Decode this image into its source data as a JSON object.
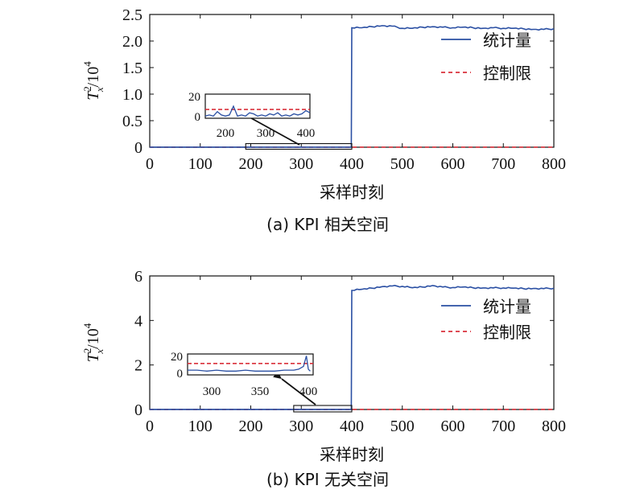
{
  "chart_data": [
    {
      "type": "line",
      "caption": "(a) KPI 相关空间",
      "xlabel": "采样时刻",
      "ylabel_main": "T",
      "ylabel_sup": "2",
      "ylabel_sub": "x",
      "ylabel_rest": "/10",
      "ylabel_exp": "4",
      "xlim": [
        0,
        800
      ],
      "ylim": [
        0,
        2.5
      ],
      "xticks": [
        "0",
        "100",
        "200",
        "300",
        "400",
        "500",
        "600",
        "700",
        "800"
      ],
      "yticks": [
        "0",
        "0.5",
        "1.0",
        "1.5",
        "2.0",
        "2.5"
      ],
      "legend": [
        "统计量",
        "控制限"
      ],
      "colors": {
        "statistic": "#2a4fa3",
        "limit": "#d9313b"
      },
      "control_limit": 0.0008,
      "series": [
        {
          "name": "统计量",
          "x": [
            0,
            399,
            400,
            420,
            440,
            460,
            480,
            500,
            520,
            540,
            560,
            580,
            600,
            620,
            640,
            660,
            680,
            700,
            720,
            740,
            760,
            780,
            800
          ],
          "y": [
            0.002,
            0.002,
            2.25,
            2.25,
            2.27,
            2.29,
            2.28,
            2.24,
            2.24,
            2.26,
            2.27,
            2.26,
            2.25,
            2.26,
            2.25,
            2.24,
            2.25,
            2.24,
            2.24,
            2.23,
            2.22,
            2.22,
            2.23
          ]
        }
      ],
      "inset": {
        "xticks": [
          "200",
          "300",
          "400"
        ],
        "yticks": [
          "20",
          "0"
        ],
        "xlim": [
          150,
          410
        ],
        "ylim": [
          0,
          22
        ],
        "limit": 8,
        "x": [
          150,
          160,
          170,
          180,
          190,
          200,
          210,
          220,
          230,
          240,
          250,
          260,
          270,
          280,
          290,
          300,
          310,
          320,
          330,
          340,
          350,
          360,
          370,
          380,
          390,
          400,
          410
        ],
        "y": [
          2,
          3,
          2,
          6,
          3,
          2,
          3,
          11,
          2,
          3,
          2,
          5,
          4,
          2,
          3,
          2,
          4,
          3,
          5,
          2,
          3,
          2,
          4,
          3,
          4,
          7,
          5
        ],
        "zoom_box_x": [
          190,
          400
        ]
      }
    },
    {
      "type": "line",
      "caption": "(b) KPI 无关空间",
      "xlabel": "采样时刻",
      "ylabel_main": "T",
      "ylabel_sup": "2",
      "ylabel_sub": "x",
      "ylabel_rest": "/10",
      "ylabel_exp": "4",
      "xlim": [
        0,
        800
      ],
      "ylim": [
        0,
        6
      ],
      "xticks": [
        "0",
        "100",
        "200",
        "300",
        "400",
        "500",
        "600",
        "700",
        "800"
      ],
      "yticks": [
        "0",
        "2",
        "4",
        "6"
      ],
      "legend": [
        "统计量",
        "控制限"
      ],
      "colors": {
        "statistic": "#2a4fa3",
        "limit": "#d9313b"
      },
      "control_limit": 0.001,
      "series": [
        {
          "name": "统计量",
          "x": [
            0,
            399,
            400,
            420,
            440,
            460,
            480,
            500,
            520,
            540,
            560,
            580,
            600,
            620,
            640,
            660,
            680,
            700,
            720,
            740,
            760,
            780,
            800
          ],
          "y": [
            0.003,
            0.003,
            5.35,
            5.4,
            5.45,
            5.52,
            5.55,
            5.53,
            5.47,
            5.5,
            5.57,
            5.5,
            5.48,
            5.5,
            5.47,
            5.46,
            5.46,
            5.46,
            5.45,
            5.43,
            5.44,
            5.43,
            5.45
          ]
        }
      ],
      "inset": {
        "xticks": [
          "300",
          "350",
          "400"
        ],
        "yticks": [
          "20",
          "0"
        ],
        "xlim": [
          275,
          405
        ],
        "ylim": [
          0,
          22
        ],
        "limit": 12,
        "x": [
          275,
          285,
          295,
          305,
          315,
          325,
          335,
          345,
          355,
          365,
          375,
          385,
          390,
          395,
          398,
          400,
          402
        ],
        "y": [
          5,
          5,
          4,
          5,
          4,
          4,
          5,
          4,
          4,
          4,
          5,
          5,
          6,
          9,
          20,
          6,
          4
        ],
        "zoom_box_x": [
          285,
          400
        ]
      }
    }
  ]
}
